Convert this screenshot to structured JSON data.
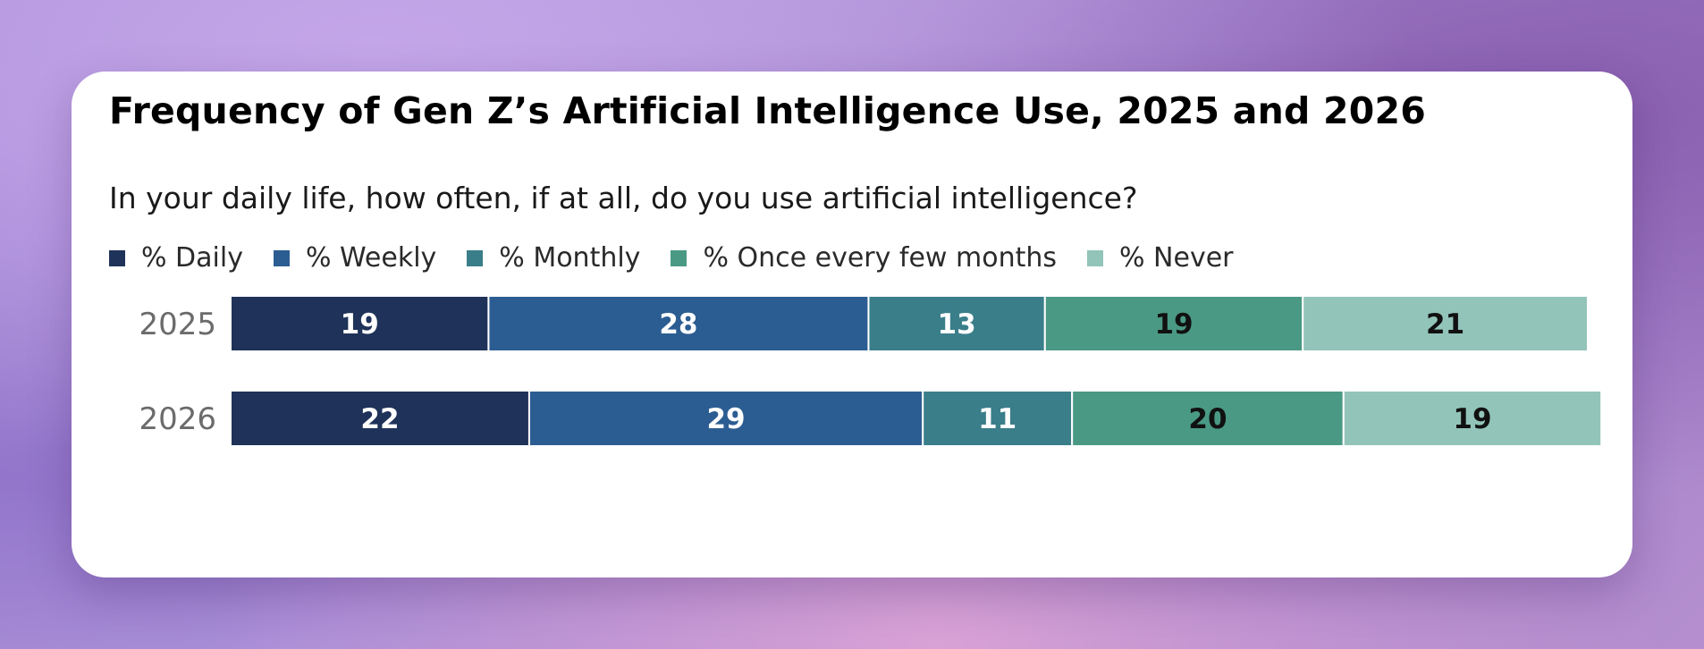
{
  "chart_data": {
    "type": "bar",
    "orientation": "horizontal",
    "stacked": true,
    "title": "Frequency of Gen Z’s Artificial Intelligence Use, 2025 and 2026",
    "subtitle": "In your daily life, how often, if at all, do you use artificial intelligence?",
    "categories": [
      "2025",
      "2026"
    ],
    "series": [
      {
        "name": "% Daily",
        "color": "#1f3259",
        "label_color": "#ffffff",
        "values": [
          19,
          22
        ]
      },
      {
        "name": "% Weekly",
        "color": "#2c5d92",
        "label_color": "#ffffff",
        "values": [
          28,
          29
        ]
      },
      {
        "name": "% Monthly",
        "color": "#3a7e8a",
        "label_color": "#ffffff",
        "values": [
          13,
          11
        ]
      },
      {
        "name": "% Once every few months",
        "color": "#4a9984",
        "label_color": "#111111",
        "values": [
          19,
          20
        ]
      },
      {
        "name": "% Never",
        "color": "#92c4b9",
        "label_color": "#111111",
        "values": [
          21,
          19
        ]
      }
    ],
    "legend_position": "top-left",
    "grid": false
  }
}
